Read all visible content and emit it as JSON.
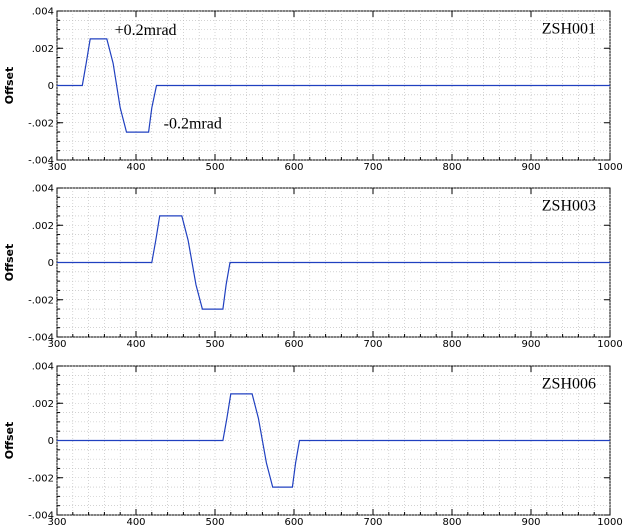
{
  "chart_data": [
    {
      "type": "line",
      "ylabel": "Offset",
      "label": "ZSH001",
      "xlim": [
        300,
        1000
      ],
      "ylim": [
        -0.004,
        0.004
      ],
      "grid": true,
      "x_ticks": [
        "300",
        "400",
        "500",
        "600",
        "700",
        "800",
        "900",
        "1000"
      ],
      "y_ticks": [
        ".004",
        ".002",
        "0",
        "-.002",
        "-.004"
      ],
      "annotations": [
        {
          "text": "+0.2mrad",
          "x": 373,
          "y": 0.0027
        },
        {
          "text": "-0.2mrad",
          "x": 435,
          "y": -0.0023
        }
      ],
      "series": [
        {
          "color": "#2040c0",
          "points": [
            [
              300,
              0
            ],
            [
              332,
              0
            ],
            [
              337,
              0.0012
            ],
            [
              342,
              0.0025
            ],
            [
              363,
              0.0025
            ],
            [
              371,
              0.0012
            ],
            [
              380,
              -0.0012
            ],
            [
              388,
              -0.0025
            ],
            [
              416,
              -0.0025
            ],
            [
              420,
              -0.0012
            ],
            [
              426,
              0
            ],
            [
              1000,
              0
            ]
          ]
        }
      ]
    },
    {
      "type": "line",
      "ylabel": "Offset",
      "label": "ZSH003",
      "xlim": [
        300,
        1000
      ],
      "ylim": [
        -0.004,
        0.004
      ],
      "grid": true,
      "x_ticks": [
        "300",
        "400",
        "500",
        "600",
        "700",
        "800",
        "900",
        "1000"
      ],
      "y_ticks": [
        ".004",
        ".002",
        "0",
        "-.002",
        "-.004"
      ],
      "series": [
        {
          "color": "#2040c0",
          "points": [
            [
              300,
              0
            ],
            [
              420,
              0
            ],
            [
              425,
              0.0012
            ],
            [
              430,
              0.0025
            ],
            [
              458,
              0.0025
            ],
            [
              466,
              0.0012
            ],
            [
              476,
              -0.0012
            ],
            [
              484,
              -0.0025
            ],
            [
              510,
              -0.0025
            ],
            [
              514,
              -0.0012
            ],
            [
              519,
              0
            ],
            [
              1000,
              0
            ]
          ]
        }
      ]
    },
    {
      "type": "line",
      "ylabel": "Offset",
      "label": "ZSH006",
      "xlim": [
        300,
        1000
      ],
      "ylim": [
        -0.004,
        0.004
      ],
      "grid": true,
      "x_ticks": [
        "300",
        "400",
        "500",
        "600",
        "700",
        "800",
        "900",
        "1000"
      ],
      "y_ticks": [
        ".004",
        ".002",
        "0",
        "-.002",
        "-.004"
      ],
      "series": [
        {
          "color": "#2040c0",
          "points": [
            [
              300,
              0
            ],
            [
              510,
              0
            ],
            [
              515,
              0.0012
            ],
            [
              520,
              0.0025
            ],
            [
              547,
              0.0025
            ],
            [
              555,
              0.0012
            ],
            [
              565,
              -0.0012
            ],
            [
              573,
              -0.0025
            ],
            [
              598,
              -0.0025
            ],
            [
              602,
              -0.0012
            ],
            [
              607,
              0
            ],
            [
              1000,
              0
            ]
          ]
        }
      ]
    }
  ]
}
